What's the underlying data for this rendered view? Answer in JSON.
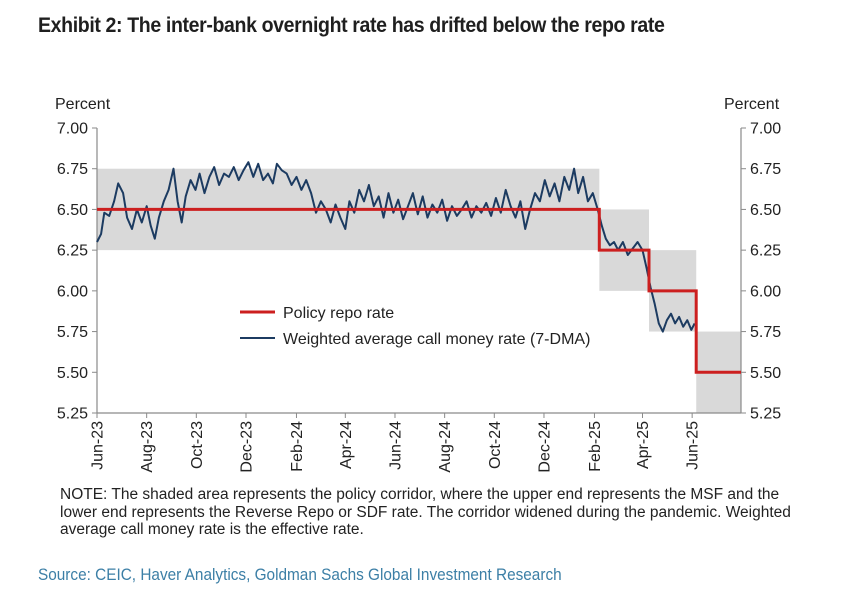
{
  "title": "Exhibit 2: The inter-bank overnight rate has drifted below the repo rate",
  "note": "NOTE: The shaded area represents the policy corridor, where the upper end represents the MSF and the lower end represents the Reverse Repo or SDF rate. The corridor widened during the pandemic. Weighted average call money rate is the effective rate.",
  "source": "Source: CEIC, Haver Analytics, Goldman Sachs Global Investment Research",
  "colors": {
    "repo_line": "#cc1f1f",
    "call_rate_line": "#1c3b61",
    "corridor_fill": "#d9d9d9",
    "source_text": "#3c7fa6"
  },
  "chart_data": {
    "type": "line",
    "ylabel_left": "Percent",
    "ylabel_right": "Percent",
    "ylim": [
      5.25,
      7.0
    ],
    "yticks": [
      "7.00",
      "6.75",
      "6.50",
      "6.25",
      "6.00",
      "5.75",
      "5.50",
      "5.25"
    ],
    "xlim": [
      "2023-06-01",
      "2025-07-31"
    ],
    "xticks": [
      "Jun-23",
      "Aug-23",
      "Oct-23",
      "Dec-23",
      "Feb-24",
      "Apr-24",
      "Jun-24",
      "Aug-24",
      "Oct-24",
      "Dec-24",
      "Feb-25",
      "Apr-25",
      "Jun-25"
    ],
    "legend": {
      "placement": "center-left",
      "entries": [
        "Policy repo rate",
        "Weighted average call money rate (7-DMA)"
      ]
    },
    "corridor": [
      {
        "start": "2023-06-01",
        "end": "2025-02-07",
        "lower": 6.25,
        "upper": 6.75
      },
      {
        "start": "2025-02-07",
        "end": "2025-04-09",
        "lower": 6.0,
        "upper": 6.5
      },
      {
        "start": "2025-04-09",
        "end": "2025-06-06",
        "lower": 5.75,
        "upper": 6.25
      },
      {
        "start": "2025-06-06",
        "end": "2025-07-31",
        "lower": 5.25,
        "upper": 5.75
      }
    ],
    "series": [
      {
        "name": "Policy repo rate",
        "points": [
          [
            "2023-06-01",
            6.5
          ],
          [
            "2025-02-07",
            6.5
          ],
          [
            "2025-02-07",
            6.25
          ],
          [
            "2025-04-09",
            6.25
          ],
          [
            "2025-04-09",
            6.0
          ],
          [
            "2025-06-06",
            6.0
          ],
          [
            "2025-06-06",
            5.5
          ],
          [
            "2025-07-31",
            5.5
          ]
        ]
      },
      {
        "name": "Weighted average call money rate (7-DMA)",
        "points": [
          [
            "2023-06-01",
            6.3
          ],
          [
            "2023-06-06",
            6.35
          ],
          [
            "2023-06-10",
            6.48
          ],
          [
            "2023-06-16",
            6.46
          ],
          [
            "2023-06-22",
            6.55
          ],
          [
            "2023-06-27",
            6.66
          ],
          [
            "2023-07-03",
            6.6
          ],
          [
            "2023-07-08",
            6.45
          ],
          [
            "2023-07-14",
            6.38
          ],
          [
            "2023-07-20",
            6.5
          ],
          [
            "2023-07-26",
            6.42
          ],
          [
            "2023-08-01",
            6.52
          ],
          [
            "2023-08-06",
            6.4
          ],
          [
            "2023-08-11",
            6.32
          ],
          [
            "2023-08-16",
            6.45
          ],
          [
            "2023-08-22",
            6.55
          ],
          [
            "2023-08-28",
            6.62
          ],
          [
            "2023-09-03",
            6.75
          ],
          [
            "2023-09-08",
            6.55
          ],
          [
            "2023-09-13",
            6.42
          ],
          [
            "2023-09-18",
            6.58
          ],
          [
            "2023-09-24",
            6.68
          ],
          [
            "2023-09-30",
            6.62
          ],
          [
            "2023-10-05",
            6.72
          ],
          [
            "2023-10-11",
            6.6
          ],
          [
            "2023-10-17",
            6.7
          ],
          [
            "2023-10-23",
            6.76
          ],
          [
            "2023-10-29",
            6.65
          ],
          [
            "2023-11-04",
            6.72
          ],
          [
            "2023-11-10",
            6.7
          ],
          [
            "2023-11-16",
            6.76
          ],
          [
            "2023-11-22",
            6.68
          ],
          [
            "2023-11-28",
            6.74
          ],
          [
            "2023-12-04",
            6.79
          ],
          [
            "2023-12-10",
            6.7
          ],
          [
            "2023-12-16",
            6.78
          ],
          [
            "2023-12-22",
            6.68
          ],
          [
            "2023-12-28",
            6.72
          ],
          [
            "2024-01-03",
            6.66
          ],
          [
            "2024-01-08",
            6.78
          ],
          [
            "2024-01-14",
            6.74
          ],
          [
            "2024-01-20",
            6.72
          ],
          [
            "2024-01-26",
            6.65
          ],
          [
            "2024-02-01",
            6.7
          ],
          [
            "2024-02-07",
            6.62
          ],
          [
            "2024-02-13",
            6.68
          ],
          [
            "2024-02-19",
            6.6
          ],
          [
            "2024-02-25",
            6.48
          ],
          [
            "2024-03-02",
            6.55
          ],
          [
            "2024-03-08",
            6.5
          ],
          [
            "2024-03-14",
            6.42
          ],
          [
            "2024-03-20",
            6.53
          ],
          [
            "2024-03-26",
            6.45
          ],
          [
            "2024-04-01",
            6.38
          ],
          [
            "2024-04-06",
            6.55
          ],
          [
            "2024-04-12",
            6.48
          ],
          [
            "2024-04-18",
            6.62
          ],
          [
            "2024-04-24",
            6.55
          ],
          [
            "2024-04-30",
            6.65
          ],
          [
            "2024-05-06",
            6.52
          ],
          [
            "2024-05-12",
            6.58
          ],
          [
            "2024-05-18",
            6.45
          ],
          [
            "2024-05-24",
            6.6
          ],
          [
            "2024-05-30",
            6.48
          ],
          [
            "2024-06-05",
            6.56
          ],
          [
            "2024-06-11",
            6.44
          ],
          [
            "2024-06-17",
            6.52
          ],
          [
            "2024-06-23",
            6.6
          ],
          [
            "2024-06-29",
            6.47
          ],
          [
            "2024-07-05",
            6.58
          ],
          [
            "2024-07-11",
            6.45
          ],
          [
            "2024-07-17",
            6.53
          ],
          [
            "2024-07-23",
            6.48
          ],
          [
            "2024-07-29",
            6.56
          ],
          [
            "2024-08-04",
            6.43
          ],
          [
            "2024-08-10",
            6.52
          ],
          [
            "2024-08-16",
            6.46
          ],
          [
            "2024-08-22",
            6.5
          ],
          [
            "2024-08-28",
            6.55
          ],
          [
            "2024-09-03",
            6.45
          ],
          [
            "2024-09-09",
            6.52
          ],
          [
            "2024-09-15",
            6.48
          ],
          [
            "2024-09-21",
            6.54
          ],
          [
            "2024-09-27",
            6.46
          ],
          [
            "2024-10-03",
            6.57
          ],
          [
            "2024-10-09",
            6.48
          ],
          [
            "2024-10-15",
            6.62
          ],
          [
            "2024-10-21",
            6.52
          ],
          [
            "2024-10-27",
            6.45
          ],
          [
            "2024-11-02",
            6.55
          ],
          [
            "2024-11-08",
            6.38
          ],
          [
            "2024-11-14",
            6.5
          ],
          [
            "2024-11-20",
            6.6
          ],
          [
            "2024-11-26",
            6.55
          ],
          [
            "2024-12-02",
            6.68
          ],
          [
            "2024-12-08",
            6.58
          ],
          [
            "2024-12-14",
            6.66
          ],
          [
            "2024-12-20",
            6.55
          ],
          [
            "2024-12-26",
            6.7
          ],
          [
            "2025-01-01",
            6.62
          ],
          [
            "2025-01-07",
            6.75
          ],
          [
            "2025-01-12",
            6.6
          ],
          [
            "2025-01-18",
            6.7
          ],
          [
            "2025-01-24",
            6.55
          ],
          [
            "2025-01-30",
            6.6
          ],
          [
            "2025-02-05",
            6.5
          ],
          [
            "2025-02-10",
            6.4
          ],
          [
            "2025-02-15",
            6.32
          ],
          [
            "2025-02-20",
            6.28
          ],
          [
            "2025-02-25",
            6.3
          ],
          [
            "2025-03-02",
            6.25
          ],
          [
            "2025-03-08",
            6.3
          ],
          [
            "2025-03-14",
            6.22
          ],
          [
            "2025-03-20",
            6.26
          ],
          [
            "2025-03-26",
            6.3
          ],
          [
            "2025-04-01",
            6.25
          ],
          [
            "2025-04-06",
            6.14
          ],
          [
            "2025-04-11",
            6.02
          ],
          [
            "2025-04-16",
            5.92
          ],
          [
            "2025-04-21",
            5.8
          ],
          [
            "2025-04-26",
            5.75
          ],
          [
            "2025-05-01",
            5.82
          ],
          [
            "2025-05-06",
            5.86
          ],
          [
            "2025-05-11",
            5.8
          ],
          [
            "2025-05-16",
            5.84
          ],
          [
            "2025-05-21",
            5.78
          ],
          [
            "2025-05-26",
            5.82
          ],
          [
            "2025-05-31",
            5.76
          ],
          [
            "2025-06-04",
            5.8
          ]
        ]
      }
    ]
  }
}
